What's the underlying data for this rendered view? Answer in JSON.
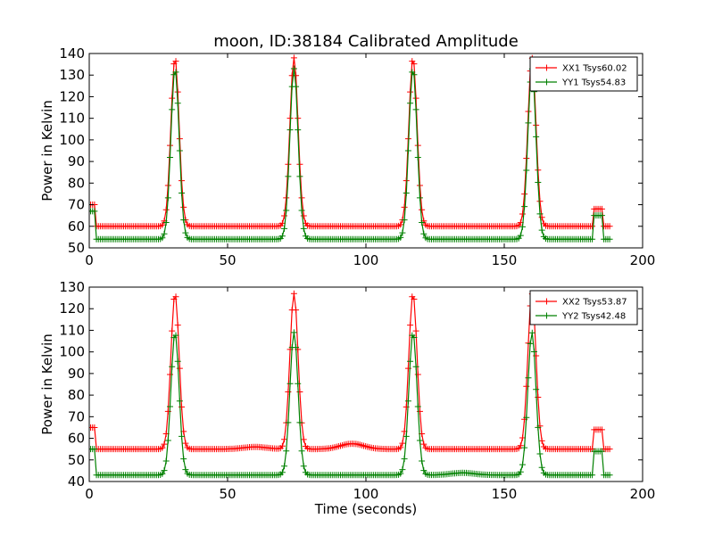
{
  "colors": {
    "red": "#ff0000",
    "green": "#008000",
    "axis": "#000000",
    "background": "#ffffff"
  },
  "chart_data": [
    {
      "type": "line",
      "title": "moon, ID:38184 Calibrated Amplitude",
      "xlabel": "",
      "ylabel": "Power in Kelvin",
      "xlim": [
        0,
        200
      ],
      "ylim": [
        50,
        140
      ],
      "xticks": [
        0,
        50,
        100,
        150,
        200
      ],
      "yticks": [
        50,
        60,
        70,
        80,
        90,
        100,
        110,
        120,
        130,
        140
      ],
      "legend_position": "top-right",
      "marker": "+",
      "series": [
        {
          "name": "XX1 Tsys60.02",
          "color": "#ff0000",
          "baseline": 60,
          "peak": 138,
          "step_start": 70,
          "step_end": 68,
          "peak_centers": [
            31,
            74,
            117,
            160
          ],
          "ripple": [
            [
              92,
              0.0
            ]
          ]
        },
        {
          "name": "YY1 Tsys54.83",
          "color": "#008000",
          "baseline": 54,
          "peak": 133,
          "step_start": 67,
          "step_end": 65,
          "peak_centers": [
            31,
            74,
            117,
            160
          ],
          "ripple": [
            [
              92,
              0.0
            ]
          ]
        }
      ]
    },
    {
      "type": "line",
      "title": "",
      "xlabel": "Time (seconds)",
      "ylabel": "Power in Kelvin",
      "xlim": [
        0,
        200
      ],
      "ylim": [
        40,
        130
      ],
      "xticks": [
        0,
        50,
        100,
        150,
        200
      ],
      "yticks": [
        40,
        50,
        60,
        70,
        80,
        90,
        100,
        110,
        120,
        130
      ],
      "legend_position": "top-right",
      "marker": "+",
      "series": [
        {
          "name": "XX2 Tsys53.87",
          "color": "#ff0000",
          "baseline": 55,
          "peak": 127,
          "step_start": 65,
          "step_end": 64,
          "peak_centers": [
            31,
            74,
            117,
            160
          ],
          "ripple": [
            [
              95,
              2.5
            ],
            [
              60,
              1.0
            ]
          ]
        },
        {
          "name": "YY2 Tsys42.48",
          "color": "#008000",
          "baseline": 43,
          "peak": 109,
          "step_start": 55,
          "step_end": 54,
          "peak_centers": [
            31,
            74,
            117,
            160
          ],
          "ripple": [
            [
              135,
              1.0
            ]
          ]
        }
      ]
    }
  ]
}
